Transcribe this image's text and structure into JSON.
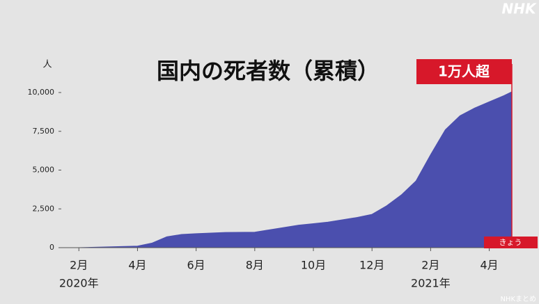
{
  "chart_data": {
    "type": "area",
    "title": "国内の死者数（累積）",
    "annotation": "1万人超",
    "today_label": "きょう",
    "y_unit": "人",
    "logo": "NHK",
    "source": "NHKまとめ",
    "color": "#4b4fae",
    "marker_color": "#d7182a",
    "x": [
      1.4,
      2,
      3,
      4,
      4.5,
      5,
      5.5,
      6,
      7,
      8,
      8.5,
      9,
      9.5,
      10,
      10.5,
      11,
      11.5,
      12,
      12.5,
      13,
      13.5,
      14,
      14.5,
      15,
      15.5,
      16,
      16.5,
      16.77
    ],
    "values": [
      0,
      0,
      50,
      100,
      300,
      700,
      850,
      900,
      980,
      1000,
      1150,
      1300,
      1450,
      1550,
      1650,
      1800,
      1950,
      2150,
      2700,
      3400,
      4300,
      6000,
      7600,
      8500,
      9000,
      9400,
      9800,
      10050
    ],
    "xlim": [
      1.4,
      16.77
    ],
    "xticks": [
      {
        "value": 2,
        "label": "2月"
      },
      {
        "value": 4,
        "label": "4月"
      },
      {
        "value": 6,
        "label": "6月"
      },
      {
        "value": 8,
        "label": "8月"
      },
      {
        "value": 10,
        "label": "10月"
      },
      {
        "value": 12,
        "label": "12月"
      },
      {
        "value": 14,
        "label": "2月"
      },
      {
        "value": 16,
        "label": "4月"
      }
    ],
    "x_year_labels": [
      {
        "value": 2,
        "label": "2020年"
      },
      {
        "value": 14,
        "label": "2021年"
      }
    ],
    "ylim": [
      0,
      10000
    ],
    "yticks": [
      0,
      {
        "value": 2500,
        "label": "2,500"
      },
      {
        "value": 5000,
        "label": "5,000"
      },
      {
        "value": 7500,
        "label": "7,500"
      },
      {
        "value": 10000,
        "label": "10,000"
      }
    ]
  }
}
